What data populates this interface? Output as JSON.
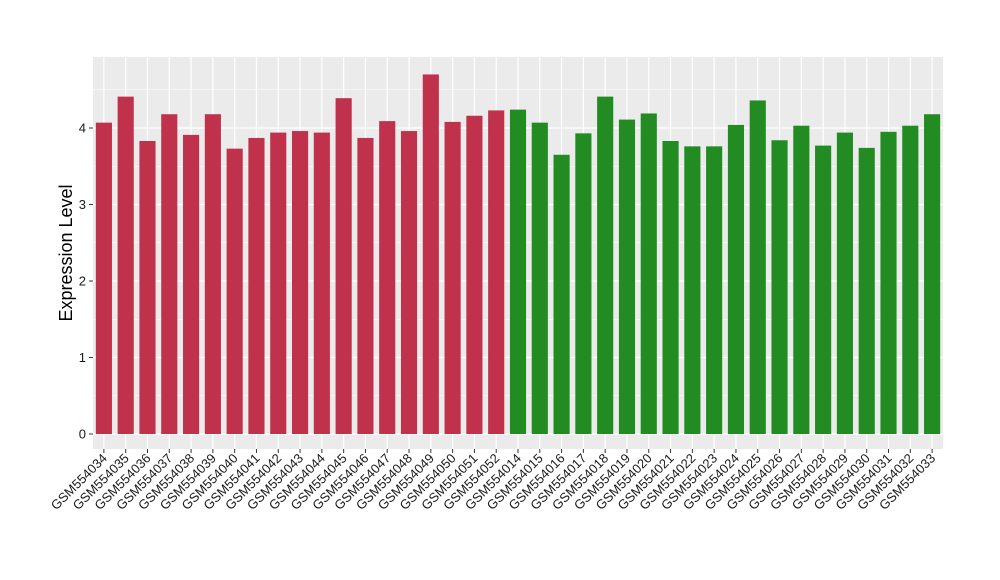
{
  "chart_data": {
    "type": "bar",
    "title": "",
    "xlabel": "",
    "ylabel": "Expression Level",
    "ylim": [
      -0.22,
      4.9
    ],
    "yticks": [
      0,
      1,
      2,
      3,
      4
    ],
    "grid": true,
    "legend": "none",
    "series_colors": {
      "group_a": "#c0314b",
      "group_b": "#228b22"
    },
    "panel_background": "#ebebeb",
    "gridline_color": "#ffffff",
    "categories": [
      "GSM554034",
      "GSM554035",
      "GSM554036",
      "GSM554037",
      "GSM554038",
      "GSM554039",
      "GSM554040",
      "GSM554041",
      "GSM554042",
      "GSM554043",
      "GSM554044",
      "GSM554045",
      "GSM554046",
      "GSM554047",
      "GSM554048",
      "GSM554049",
      "GSM554050",
      "GSM554051",
      "GSM554052",
      "GSM554014",
      "GSM554015",
      "GSM554016",
      "GSM554017",
      "GSM554018",
      "GSM554019",
      "GSM554020",
      "GSM554021",
      "GSM554022",
      "GSM554023",
      "GSM554024",
      "GSM554025",
      "GSM554026",
      "GSM554027",
      "GSM554028",
      "GSM554029",
      "GSM554030",
      "GSM554031",
      "GSM554032",
      "GSM554033"
    ],
    "values": [
      4.07,
      4.41,
      3.83,
      4.18,
      3.91,
      4.18,
      3.73,
      3.87,
      3.94,
      3.96,
      3.94,
      4.39,
      3.87,
      4.09,
      3.96,
      4.7,
      4.08,
      4.16,
      4.23,
      4.24,
      4.07,
      3.65,
      3.93,
      4.41,
      4.11,
      4.19,
      3.83,
      3.76,
      3.76,
      4.04,
      4.36,
      3.84,
      4.03,
      3.77,
      3.94,
      3.74,
      3.95,
      4.03,
      4.18
    ],
    "groups": [
      "a",
      "a",
      "a",
      "a",
      "a",
      "a",
      "a",
      "a",
      "a",
      "a",
      "a",
      "a",
      "a",
      "a",
      "a",
      "a",
      "a",
      "a",
      "a",
      "b",
      "b",
      "b",
      "b",
      "b",
      "b",
      "b",
      "b",
      "b",
      "b",
      "b",
      "b",
      "b",
      "b",
      "b",
      "b",
      "b",
      "b",
      "b",
      "b"
    ]
  }
}
